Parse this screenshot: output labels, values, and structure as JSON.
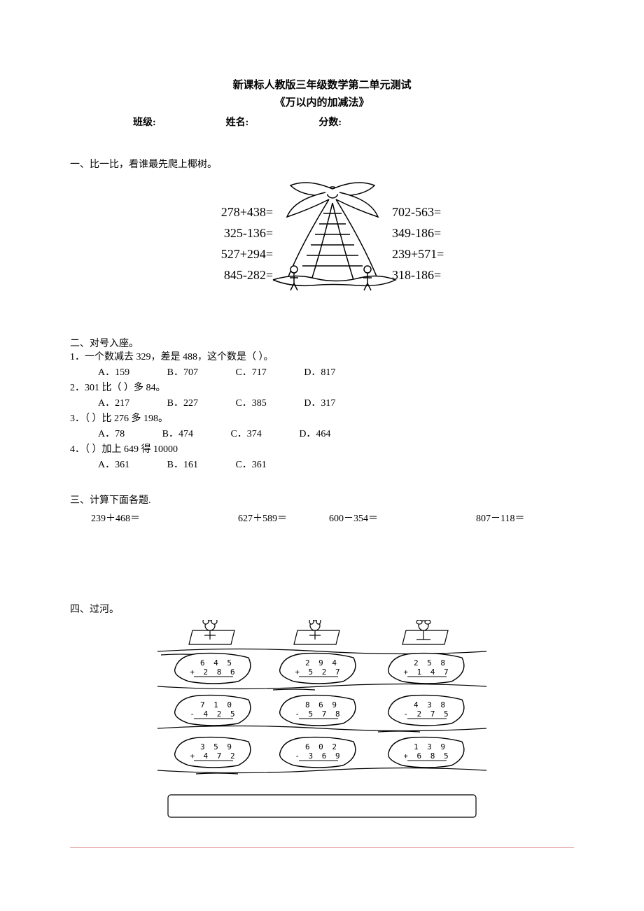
{
  "title": "新课标人教版三年级数学第二单元测试",
  "subtitle": "《万以内的加减法》",
  "header": {
    "class": "班级:",
    "name": "姓名:",
    "score": "分数:"
  },
  "section1": {
    "title": "一、比一比，看谁最先爬上椰树。",
    "left": [
      "278+438=",
      "325-136=",
      "527+294=",
      "845-282="
    ],
    "right": [
      "702-563=",
      "349-186=",
      "239+571=",
      "318-186="
    ]
  },
  "section2": {
    "title": "二、对号入座。",
    "items": [
      {
        "q": "1．一个数减去 329，差是 488，这个数是（  ）。",
        "opts": [
          "A．159",
          "B．707",
          "C．717",
          "D．817"
        ]
      },
      {
        "q": "2．301 比（  ）多 84。",
        "opts": [
          "A．217",
          "B．227",
          "C．385",
          "D．317"
        ]
      },
      {
        "q": "3．（  ）比 276 多 198。",
        "opts": [
          "A．78",
          "B．474",
          "C．374",
          "D．464"
        ]
      },
      {
        "q": "4．（  ）加上 649 得 10000",
        "opts": [
          "A．361",
          "B．161",
          "C．361"
        ]
      }
    ]
  },
  "section3": {
    "title": "三、计算下面各题.",
    "problems": [
      "239＋468＝",
      "627＋589＝",
      "600－354＝",
      "807－118＝"
    ]
  },
  "section4": {
    "title": "四、过河。",
    "stones": [
      [
        {
          "t": "6 4 5",
          "b": "+ 2 8 6"
        },
        {
          "t": "2 9 4",
          "b": "+ 5 2 7"
        },
        {
          "t": "2 5 8",
          "b": "+ 1 4 7"
        }
      ],
      [
        {
          "t": "7 1 0",
          "b": "- 4 2 5"
        },
        {
          "t": "8 6 9",
          "b": "- 5 7 8"
        },
        {
          "t": "4 3 8",
          "b": "- 2 7 5"
        }
      ],
      [
        {
          "t": "3 5 9",
          "b": "+ 4 7 2"
        },
        {
          "t": "6 0 2",
          "b": "- 3 6 9"
        },
        {
          "t": "1 3 9",
          "b": "+ 6 8 5"
        }
      ]
    ]
  },
  "colors": {
    "page_bg": "#ffffff",
    "text": "#000000",
    "footer_rule": "#e4a4a4"
  }
}
